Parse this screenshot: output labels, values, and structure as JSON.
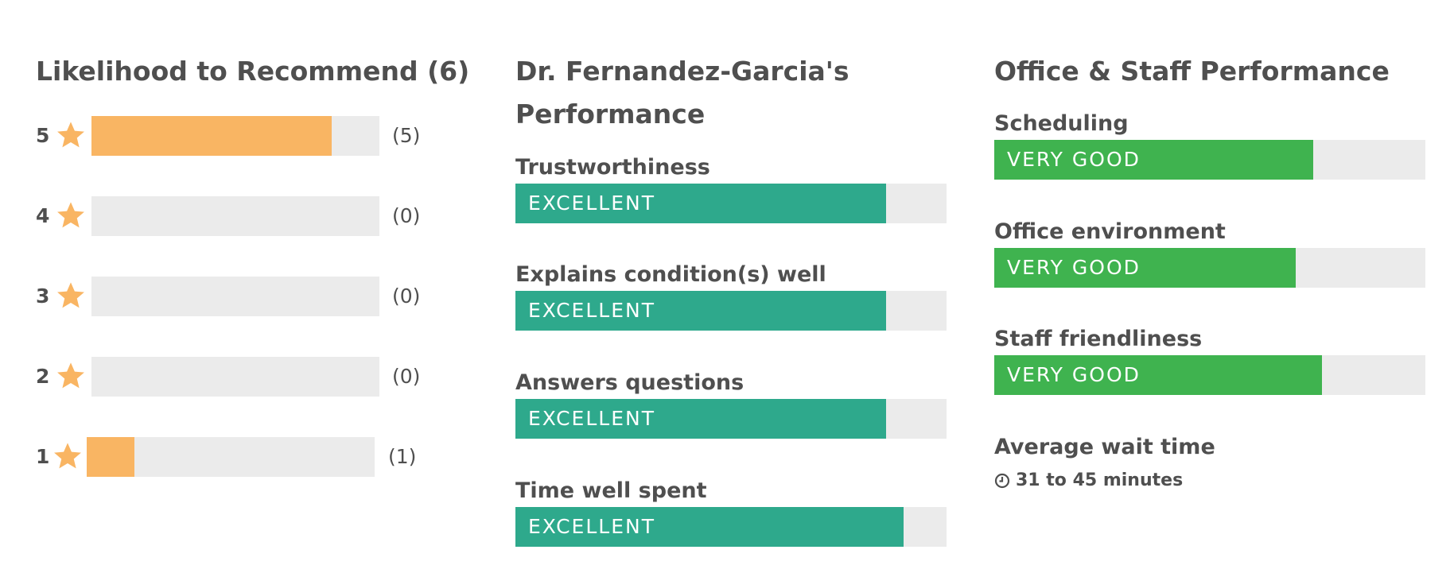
{
  "recommend": {
    "title": "Likelihood to Recommend (6)",
    "rows": [
      {
        "rating": "5",
        "count_label": "(5)",
        "share": 0.833
      },
      {
        "rating": "4",
        "count_label": "(0)",
        "share": 0
      },
      {
        "rating": "3",
        "count_label": "(0)",
        "share": 0
      },
      {
        "rating": "2",
        "count_label": "(0)",
        "share": 0
      },
      {
        "rating": "1",
        "count_label": "(1)",
        "share": 0.167
      }
    ],
    "fill_color": "#f9b563",
    "star_color": "#f9b563"
  },
  "doctor": {
    "title_line1": "Dr. Fernandez-Garcia's",
    "title_line2": "Performance",
    "metrics": [
      {
        "label": "Trustworthiness",
        "rating": "EXCELLENT",
        "level": 0.86
      },
      {
        "label": "Explains condition(s) well",
        "rating": "EXCELLENT",
        "level": 0.86
      },
      {
        "label": "Answers questions",
        "rating": "EXCELLENT",
        "level": 0.86
      },
      {
        "label": "Time well spent",
        "rating": "EXCELLENT",
        "level": 0.9
      }
    ],
    "fill_color": "#2ea98c"
  },
  "office": {
    "title": "Office & Staff Performance",
    "metrics": [
      {
        "label": "Scheduling",
        "rating": "VERY GOOD",
        "level": 0.74
      },
      {
        "label": "Office environment",
        "rating": "VERY GOOD",
        "level": 0.7
      },
      {
        "label": "Staff friendliness",
        "rating": "VERY GOOD",
        "level": 0.76
      }
    ],
    "wait_label": "Average wait time",
    "wait_value": "31 to 45 minutes",
    "fill_color": "#3fb34f"
  }
}
